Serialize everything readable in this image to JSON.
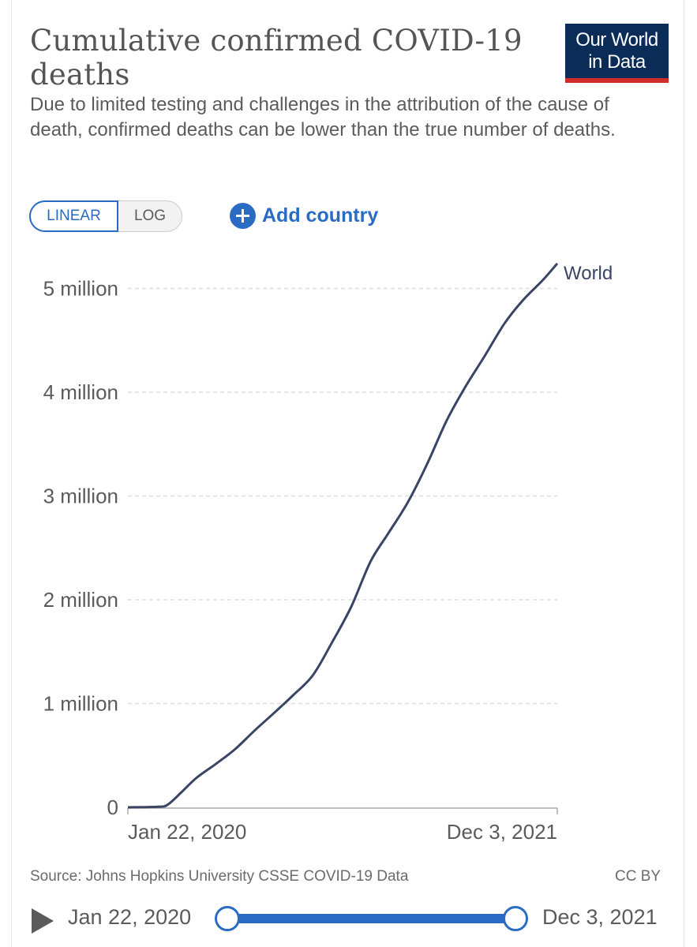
{
  "header": {
    "title": "Cumulative confirmed COVID-19 deaths",
    "subtitle": "Due to limited testing and challenges in the attribution of the cause of death, confirmed deaths can be lower than the true number of deaths.",
    "logo_line1": "Our World",
    "logo_line2": "in Data"
  },
  "controls": {
    "linear_label": "LINEAR",
    "log_label": "LOG",
    "add_country_label": "Add country"
  },
  "footer": {
    "source": "Source: Johns Hopkins University CSSE COVID-19 Data",
    "license": "CC BY"
  },
  "timeline": {
    "start_label": "Jan 22, 2020",
    "end_label": "Dec 3, 2021"
  },
  "colors": {
    "line": "#3a4565",
    "accent": "#2a6bc4",
    "logo_bg": "#0b2c57",
    "logo_bar": "#cf2c2c",
    "grid": "#dddddd",
    "text": "#5b5b5b"
  },
  "chart_data": {
    "type": "line",
    "title": "Cumulative confirmed COVID-19 deaths",
    "xlabel": "",
    "ylabel": "",
    "x_tick_labels": [
      "Jan 22, 2020",
      "Dec 3, 2021"
    ],
    "y_ticks": [
      0,
      1000000,
      2000000,
      3000000,
      4000000,
      5000000
    ],
    "y_tick_labels": [
      "0",
      "1 million",
      "2 million",
      "3 million",
      "4 million",
      "5 million"
    ],
    "ylim": [
      0,
      5250000
    ],
    "xlim": [
      "2020-01-22",
      "2021-12-03"
    ],
    "grid": "horizontal-dashed",
    "series": [
      {
        "name": "World",
        "points": [
          [
            "2020-01-22",
            0
          ],
          [
            "2020-03-10",
            5000
          ],
          [
            "2020-03-25",
            25000
          ],
          [
            "2020-04-15",
            140000
          ],
          [
            "2020-05-10",
            285000
          ],
          [
            "2020-06-10",
            420000
          ],
          [
            "2020-07-10",
            560000
          ],
          [
            "2020-08-10",
            740000
          ],
          [
            "2020-09-10",
            910000
          ],
          [
            "2020-10-10",
            1080000
          ],
          [
            "2020-11-10",
            1270000
          ],
          [
            "2020-12-10",
            1580000
          ],
          [
            "2021-01-10",
            1930000
          ],
          [
            "2021-02-10",
            2370000
          ],
          [
            "2021-03-10",
            2640000
          ],
          [
            "2021-04-10",
            2940000
          ],
          [
            "2021-05-10",
            3300000
          ],
          [
            "2021-06-10",
            3720000
          ],
          [
            "2021-07-10",
            4050000
          ],
          [
            "2021-08-10",
            4350000
          ],
          [
            "2021-09-10",
            4660000
          ],
          [
            "2021-10-10",
            4890000
          ],
          [
            "2021-11-10",
            5080000
          ],
          [
            "2021-12-03",
            5240000
          ]
        ]
      }
    ]
  }
}
